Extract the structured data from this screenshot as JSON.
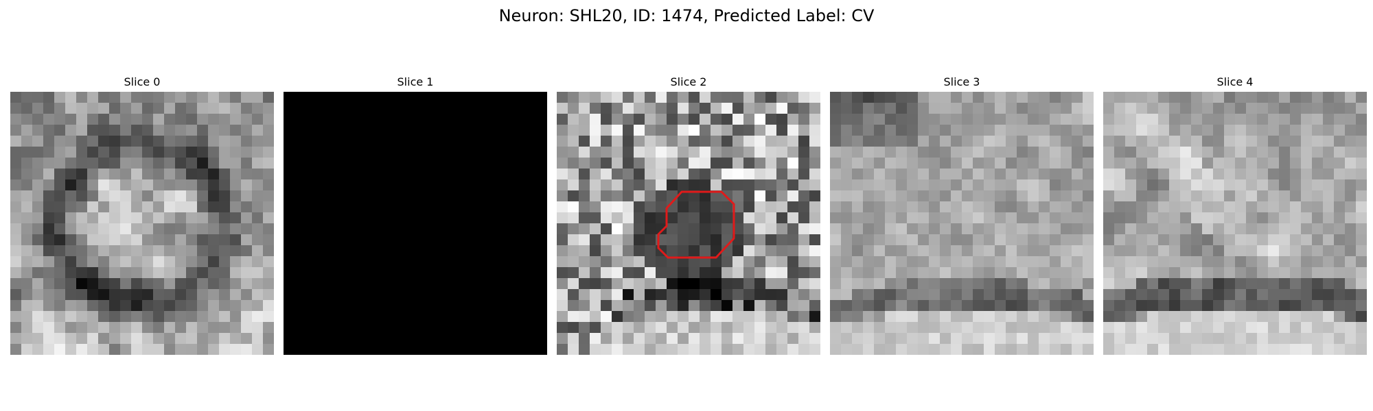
{
  "figure": {
    "title": "Neuron: SHL20, ID: 1474, Predicted Label: CV"
  },
  "panels": [
    {
      "title": "Slice 0",
      "style": "ring",
      "seed": 11,
      "blank": false
    },
    {
      "title": "Slice 1",
      "style": "blank",
      "seed": 0,
      "blank": true
    },
    {
      "title": "Slice 2",
      "style": "dark-blob",
      "seed": 23,
      "blank": false
    },
    {
      "title": "Slice 3",
      "style": "smooth-band",
      "seed": 37,
      "blank": false
    },
    {
      "title": "Slice 4",
      "style": "streak-band",
      "seed": 53,
      "blank": false
    }
  ],
  "overlay": {
    "panel_index": 2,
    "color": "#e01a1a",
    "description_shape": "contour"
  }
}
